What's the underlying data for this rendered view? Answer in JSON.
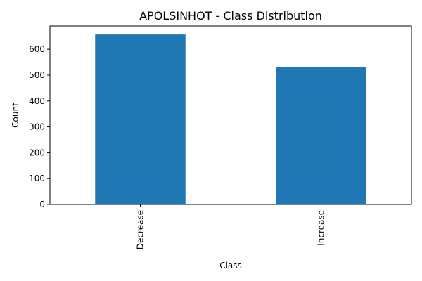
{
  "chart_data": {
    "type": "bar",
    "title": "APOLSINHOT - Class Distribution",
    "xlabel": "Class",
    "ylabel": "Count",
    "categories": [
      "Decrease",
      "Increase"
    ],
    "values": [
      657,
      532
    ],
    "ylim": [
      0,
      690
    ],
    "yticks": [
      0,
      100,
      200,
      300,
      400,
      500,
      600
    ],
    "bar_color": "#1f77b4",
    "grid": false,
    "legend": "none"
  }
}
